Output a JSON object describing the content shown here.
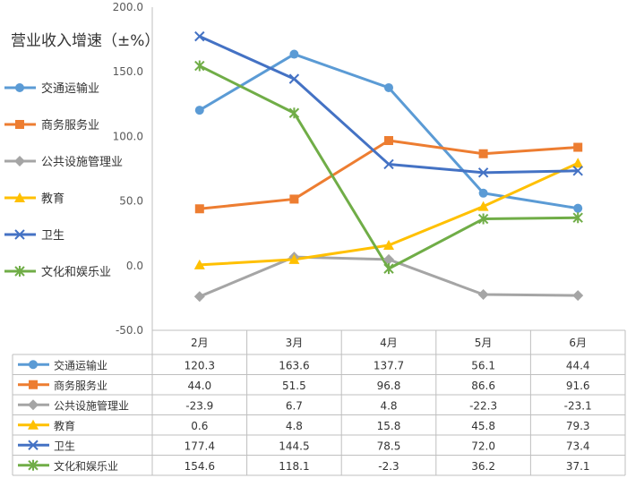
{
  "chart_data": {
    "type": "line",
    "title": "营业收入增速（±%）",
    "categories": [
      "2月",
      "3月",
      "4月",
      "5月",
      "6月"
    ],
    "ylim": [
      -50,
      200
    ],
    "yticks": [
      "-50.0",
      "0.0",
      "50.0",
      "100.0",
      "150.0",
      "200.0"
    ],
    "grid": false,
    "legend": "left",
    "data_table": true,
    "series": [
      {
        "name": "交通运输业",
        "color": "#5B9BD5",
        "marker": "circle",
        "values": [
          120.3,
          163.6,
          137.7,
          56.1,
          44.4
        ],
        "labels": [
          "120.3",
          "163.6",
          "137.7",
          "56.1",
          "44.4"
        ]
      },
      {
        "name": "商务服务业",
        "color": "#ED7D31",
        "marker": "square",
        "values": [
          44.0,
          51.5,
          96.8,
          86.6,
          91.6
        ],
        "labels": [
          "44.0",
          "51.5",
          "96.8",
          "86.6",
          "91.6"
        ]
      },
      {
        "name": "公共设施管理业",
        "color": "#A5A5A5",
        "marker": "diamond",
        "values": [
          -23.9,
          6.7,
          4.8,
          -22.3,
          -23.1
        ],
        "labels": [
          "-23.9",
          "6.7",
          "4.8",
          "-22.3",
          "-23.1"
        ]
      },
      {
        "name": "教育",
        "color": "#FFC000",
        "marker": "triangle",
        "values": [
          0.6,
          4.8,
          15.8,
          45.8,
          79.3
        ],
        "labels": [
          "0.6",
          "4.8",
          "15.8",
          "45.8",
          "79.3"
        ]
      },
      {
        "name": "卫生",
        "color": "#4472C4",
        "marker": "x",
        "values": [
          177.4,
          144.5,
          78.5,
          72.0,
          73.4
        ],
        "labels": [
          "177.4",
          "144.5",
          "78.5",
          "72.0",
          "73.4"
        ]
      },
      {
        "name": "文化和娱乐业",
        "color": "#70AD47",
        "marker": "star",
        "values": [
          154.6,
          118.1,
          -2.3,
          36.2,
          37.1
        ],
        "labels": [
          "154.6",
          "118.1",
          "-2.3",
          "36.2",
          "37.1"
        ]
      }
    ]
  }
}
